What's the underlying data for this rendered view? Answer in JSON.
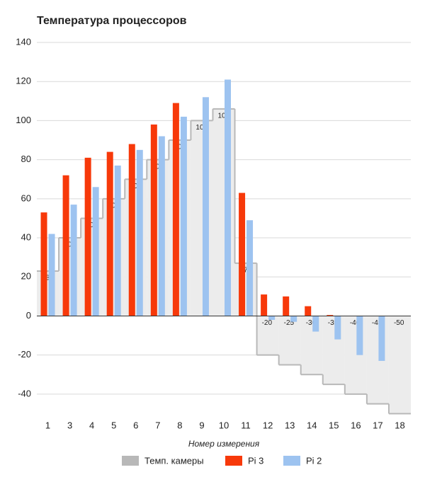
{
  "chart_data": {
    "type": "bar",
    "title": "Температура процессоров",
    "x_label": "Номер измерения",
    "categories": [
      "1",
      "3",
      "4",
      "5",
      "6",
      "7",
      "8",
      "9",
      "10",
      "11",
      "12",
      "13",
      "14",
      "15",
      "16",
      "17",
      "18"
    ],
    "series": [
      {
        "name": "Темп. камеры",
        "color": "#b8b8b8",
        "kind": "stepped-area",
        "values": [
          23,
          40,
          50,
          60,
          70,
          80,
          90,
          100,
          106,
          27,
          -20,
          -25,
          -30,
          -35,
          -40,
          -45,
          -50
        ]
      },
      {
        "name": "Pi 3",
        "color": "#f7390a",
        "kind": "bar",
        "values": [
          53,
          72,
          81,
          84,
          88,
          98,
          109,
          null,
          null,
          63,
          11,
          10,
          5,
          0.5,
          null,
          null,
          null
        ]
      },
      {
        "name": "Pi 2",
        "color": "#9dc3f0",
        "kind": "bar",
        "values": [
          42,
          57,
          66,
          77,
          85,
          92,
          102,
          112,
          121,
          49,
          -2,
          -3,
          -8,
          -12,
          -20,
          -23,
          null
        ]
      }
    ],
    "ylim": [
      -52,
      140
    ],
    "yticks": [
      -40,
      -20,
      0,
      20,
      40,
      60,
      80,
      100,
      120,
      140
    ],
    "grid": true,
    "legend": "bottom"
  }
}
